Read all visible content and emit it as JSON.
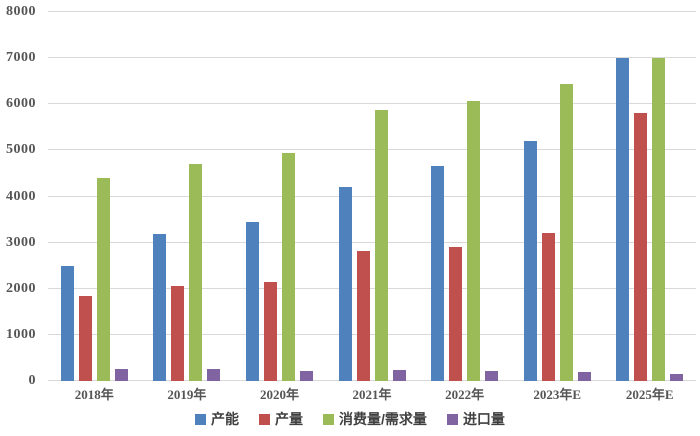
{
  "chart_data": {
    "type": "bar",
    "title": "",
    "xlabel": "",
    "ylabel": "",
    "categories": [
      "2018年",
      "2019年",
      "2020年",
      "2021年",
      "2022年",
      "2023年E",
      "2025年E"
    ],
    "series": [
      {
        "name": "产能",
        "color": "#4F81BD",
        "values": [
          2500,
          3180,
          3450,
          4200,
          4660,
          5200,
          7000
        ]
      },
      {
        "name": "产量",
        "color": "#C0504D",
        "values": [
          1840,
          2050,
          2150,
          2820,
          2900,
          3200,
          5800
        ]
      },
      {
        "name": "消费量/需求量",
        "color": "#9BBB59",
        "values": [
          4400,
          4700,
          4950,
          5880,
          6080,
          6430,
          7000
        ]
      },
      {
        "name": "进口量",
        "color": "#8064A2",
        "values": [
          270,
          260,
          210,
          230,
          220,
          200,
          150
        ]
      }
    ],
    "ylim": [
      0,
      8000
    ],
    "ytick_step": 1000,
    "ytick_labels": [
      "0",
      "1000",
      "2000",
      "3000",
      "4000",
      "5000",
      "6000",
      "7000",
      "8000"
    ],
    "grid": true,
    "gridline_color": "#d9d9d9",
    "axis_text_color": "#555555",
    "legend_position": "bottom",
    "background": "#ffffff"
  }
}
